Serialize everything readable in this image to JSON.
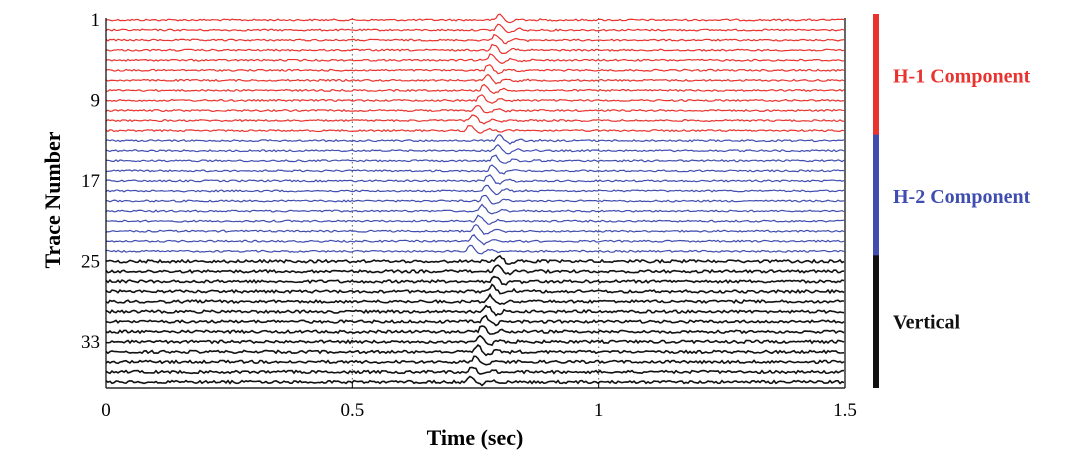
{
  "chart_data": {
    "type": "line",
    "xlabel": "Time (sec)",
    "ylabel": "Trace Number",
    "xlim": [
      0,
      1.5
    ],
    "ylim": [
      1,
      37
    ],
    "x_ticks": [
      {
        "value": 0,
        "label": "0"
      },
      {
        "value": 0.5,
        "label": "0.5"
      },
      {
        "value": 1,
        "label": "1"
      },
      {
        "value": 1.5,
        "label": "1.5"
      }
    ],
    "y_ticks": [
      {
        "value": 1,
        "label": "1"
      },
      {
        "value": 9,
        "label": "9"
      },
      {
        "value": 17,
        "label": "17"
      },
      {
        "value": 25,
        "label": "25"
      },
      {
        "value": 33,
        "label": "33"
      }
    ],
    "x_grid": true,
    "y_reversed": true,
    "series": [
      {
        "name": "H-1 Component",
        "color": "#e8332e",
        "traces": [
          1,
          12
        ],
        "first_arrival_sec": [
          0.79,
          0.789,
          0.782,
          0.778,
          0.773,
          0.768,
          0.765,
          0.759,
          0.752,
          0.745,
          0.737,
          0.73
        ]
      },
      {
        "name": "H-2 Component",
        "color": "#3f4db0",
        "traces": [
          13,
          24
        ],
        "first_arrival_sec": [
          0.79,
          0.786,
          0.779,
          0.775,
          0.768,
          0.763,
          0.759,
          0.755,
          0.748,
          0.742,
          0.738,
          0.731
        ]
      },
      {
        "name": "Vertical",
        "color": "#111111",
        "traces": [
          25,
          37
        ],
        "first_arrival_sec": [
          0.79,
          0.785,
          0.78,
          0.775,
          0.771,
          0.765,
          0.76,
          0.755,
          0.75,
          0.745,
          0.741,
          0.735,
          0.73
        ]
      }
    ]
  }
}
